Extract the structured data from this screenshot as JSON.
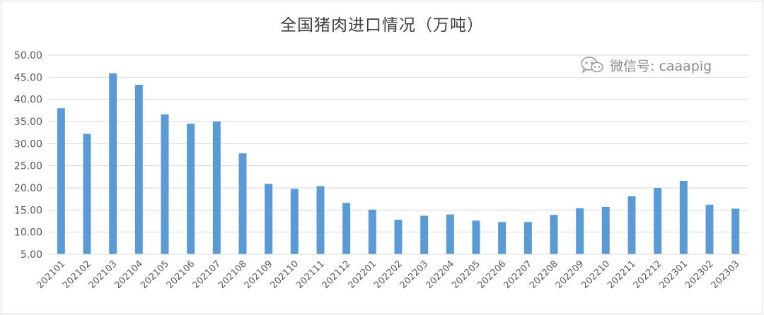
{
  "chart_data": {
    "type": "bar",
    "title": "全国猪肉进口情况（万吨）",
    "xlabel": "",
    "ylabel": "",
    "ylim": [
      5,
      50
    ],
    "yticks": [
      "5.00",
      "10.00",
      "15.00",
      "20.00",
      "25.00",
      "30.00",
      "35.00",
      "40.00",
      "45.00",
      "50.00"
    ],
    "grid": true,
    "legend": "none",
    "bar_color": "#5b9bd5",
    "categories": [
      "202101",
      "202102",
      "202103",
      "202104",
      "202105",
      "202106",
      "202107",
      "202108",
      "202109",
      "202110",
      "202111",
      "202112",
      "202201",
      "202202",
      "202203",
      "202204",
      "202205",
      "202206",
      "202207",
      "202208",
      "202209",
      "202210",
      "202211",
      "202212",
      "202301",
      "202302",
      "202303"
    ],
    "values": [
      38.0,
      32.2,
      45.9,
      43.3,
      36.6,
      34.5,
      35.0,
      27.8,
      20.9,
      19.8,
      20.4,
      16.6,
      15.1,
      12.8,
      13.7,
      14.0,
      12.6,
      12.3,
      12.3,
      13.9,
      15.4,
      15.7,
      18.1,
      20.0,
      21.6,
      16.2,
      15.3
    ]
  },
  "watermark": {
    "icon": "wechat-icon",
    "text": "微信号: caaapig"
  }
}
